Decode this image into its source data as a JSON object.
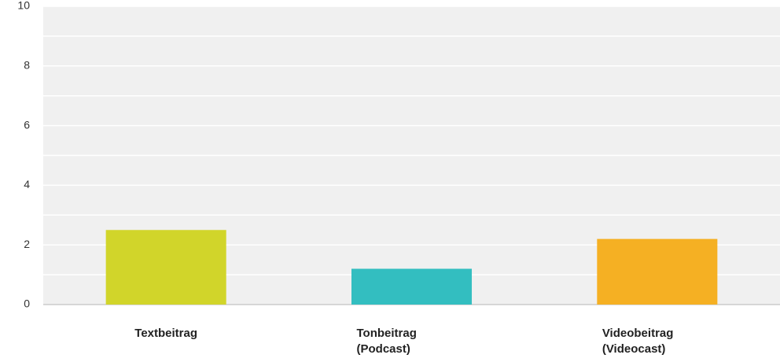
{
  "chart_data": {
    "type": "bar",
    "categories": [
      "Textbeitrag",
      "Tonbeitrag (Podcast)",
      "Videobeitrag (Videocast)"
    ],
    "values": [
      2.5,
      1.2,
      2.2
    ],
    "colors": [
      "#d1d52a",
      "#33bec0",
      "#f5b023"
    ],
    "ylim": [
      0,
      10
    ],
    "yticks": [
      0,
      2,
      4,
      6,
      8,
      10
    ],
    "minor_yticks": [
      1,
      3,
      5,
      7,
      9
    ],
    "grid": true
  }
}
